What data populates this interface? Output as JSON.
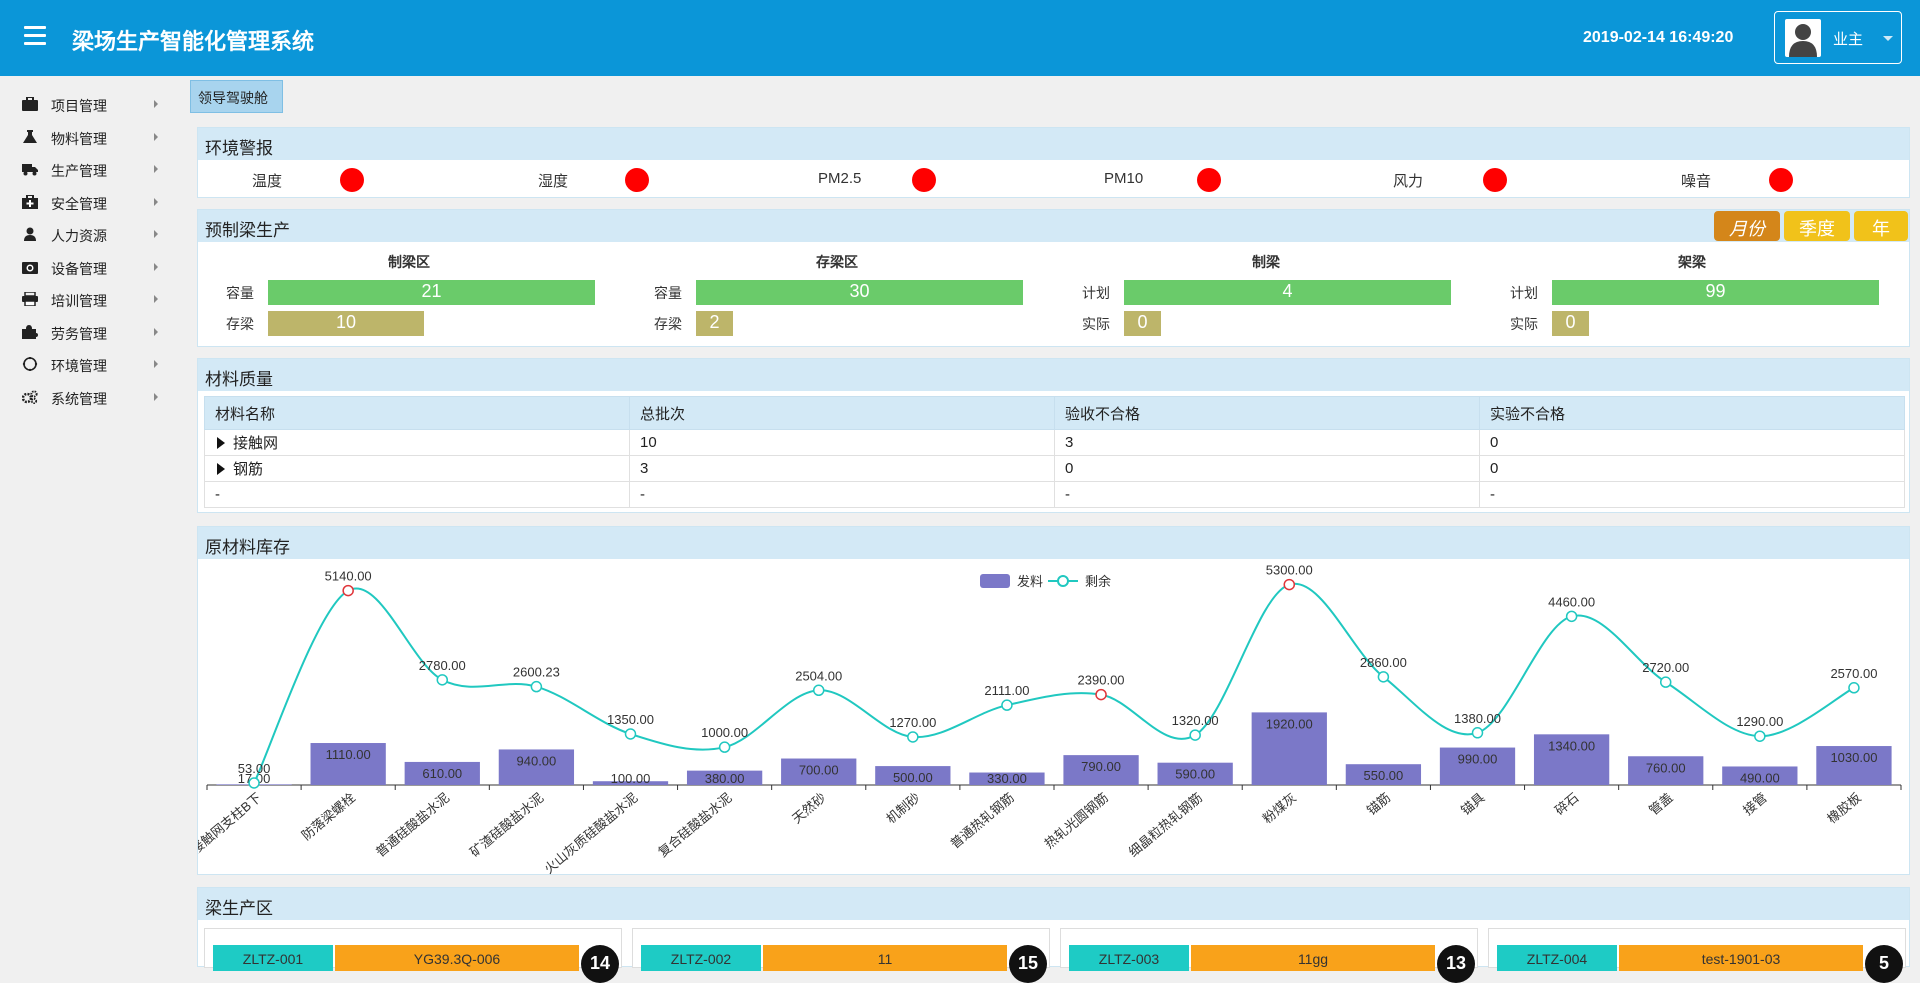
{
  "app": {
    "title": "梁场生产智能化管理系统",
    "datetime": "2019-02-14 16:49:20",
    "user": "业主"
  },
  "sidebar": {
    "items": [
      {
        "label": "项目管理",
        "icon": "briefcase-icon"
      },
      {
        "label": "物料管理",
        "icon": "flask-icon"
      },
      {
        "label": "生产管理",
        "icon": "truck-icon"
      },
      {
        "label": "安全管理",
        "icon": "medkit-icon"
      },
      {
        "label": "人力资源",
        "icon": "user-icon"
      },
      {
        "label": "设备管理",
        "icon": "camera-icon"
      },
      {
        "label": "培训管理",
        "icon": "printer-icon"
      },
      {
        "label": "劳务管理",
        "icon": "puzzle-icon"
      },
      {
        "label": "环境管理",
        "icon": "circle-icon"
      },
      {
        "label": "系统管理",
        "icon": "cogs-icon"
      }
    ]
  },
  "breadcrumb": {
    "tab": "领导驾驶舱"
  },
  "env": {
    "title": "环境警报",
    "items": [
      {
        "label": "温度",
        "status": "#ff0000"
      },
      {
        "label": "湿度",
        "status": "#ff0000"
      },
      {
        "label": "PM2.5",
        "status": "#ff0000"
      },
      {
        "label": "PM10",
        "status": "#ff0000"
      },
      {
        "label": "风力",
        "status": "#ff0000"
      },
      {
        "label": "噪音",
        "status": "#ff0000"
      }
    ]
  },
  "precast": {
    "title": "预制梁生产",
    "periods": [
      "月份",
      "季度",
      "年"
    ],
    "zones": [
      {
        "title": "制梁区",
        "rows": [
          {
            "label": "容量",
            "value": "21",
            "fraction": 1.0
          },
          {
            "label": "存梁",
            "value": "10",
            "fraction": 0.476
          }
        ]
      },
      {
        "title": "存梁区",
        "rows": [
          {
            "label": "容量",
            "value": "30",
            "fraction": 1.0
          },
          {
            "label": "存梁",
            "value": "2",
            "fraction": 0.067
          }
        ]
      },
      {
        "title": "制梁",
        "rows": [
          {
            "label": "计划",
            "value": "4",
            "fraction": 1.0
          },
          {
            "label": "实际",
            "value": "0",
            "fraction": 0.0
          }
        ]
      },
      {
        "title": "架梁",
        "rows": [
          {
            "label": "计划",
            "value": "99",
            "fraction": 1.0
          },
          {
            "label": "实际",
            "value": "0",
            "fraction": 0.0
          }
        ]
      }
    ]
  },
  "material_quality": {
    "title": "材料质量",
    "columns": [
      "材料名称",
      "总批次",
      "验收不合格",
      "实验不合格"
    ],
    "rows": [
      {
        "cells": [
          "接触网",
          "10",
          "3",
          "0"
        ],
        "expandable": true
      },
      {
        "cells": [
          "钢筋",
          "3",
          "0",
          "0"
        ],
        "expandable": true
      },
      {
        "cells": [
          "-",
          "-",
          "-",
          "-"
        ],
        "expandable": false
      }
    ]
  },
  "inventory": {
    "title": "原材料库存",
    "chart_data": {
      "type": "bar",
      "categories": [
        "接触网支柱B下",
        "防落梁螺栓",
        "普通硅酸盐水泥",
        "矿渣硅酸盐水泥",
        "火山灰质硅酸盐水泥",
        "复合硅酸盐水泥",
        "天然砂",
        "机制砂",
        "普通热轧钢筋",
        "热轧光圆钢筋",
        "细晶粒热轧钢筋",
        "粉煤灰",
        "锚筋",
        "锚具",
        "碎石",
        "管盖",
        "接管",
        "橡胶板"
      ],
      "series": [
        {
          "name": "发料",
          "type": "bar",
          "color": "#7b78c8",
          "values": [
            17.0,
            1110.0,
            610.0,
            940.0,
            100.0,
            380.0,
            700.0,
            500.0,
            330.0,
            790.0,
            590.0,
            1920.0,
            550.0,
            990.0,
            1340.0,
            760.0,
            490.0,
            1030.0
          ],
          "labels": [
            "17.00",
            "1110.00",
            "610.00",
            "940.00",
            "100.00",
            "380.00",
            "700.00",
            "500.00",
            "330.00",
            "790.00",
            "590.00",
            "1920.00",
            "550.00",
            "990.00",
            "1340.00",
            "760.00",
            "490.00",
            "1030.00"
          ]
        },
        {
          "name": "剩余",
          "type": "line",
          "color": "#20c8c0",
          "values": [
            53.0,
            5140.0,
            2780.0,
            2600.23,
            1350.0,
            1000.0,
            2504.0,
            1270.0,
            2111.0,
            2390.0,
            1320.0,
            5300.0,
            2860.0,
            1380.0,
            4460.0,
            2720.0,
            1290.0,
            2570.0
          ],
          "labels": [
            "53.00",
            "5140.00",
            "2780.00",
            "2600.23",
            "1350.00",
            "1000.00",
            "2504.00",
            "1270.00",
            "2111.00",
            "2390.00",
            "1320.00",
            "5300.00",
            "2860.00",
            "1380.00",
            "4460.00",
            "2720.00",
            "1290.00",
            "2570.00"
          ],
          "highlight": [
            1,
            9,
            11
          ]
        }
      ],
      "ylim": [
        0,
        5500
      ],
      "legend": "top-center",
      "grid": false
    }
  },
  "beam_production": {
    "title": "梁生产区",
    "cards": [
      {
        "code": "ZLTZ-001",
        "beam": "YG39.3Q-006",
        "count": "14"
      },
      {
        "code": "ZLTZ-002",
        "beam": "11",
        "count": "15"
      },
      {
        "code": "ZLTZ-003",
        "beam": "11gg",
        "count": "13"
      },
      {
        "code": "ZLTZ-004",
        "beam": "test-1901-03",
        "count": "5"
      }
    ]
  },
  "colors": {
    "header": "#0b96d8",
    "panel_head": "#d3e9f6",
    "bar_green": "#6acb6a",
    "bar_olive": "#bdb56a",
    "alarm": "#ff0000"
  }
}
